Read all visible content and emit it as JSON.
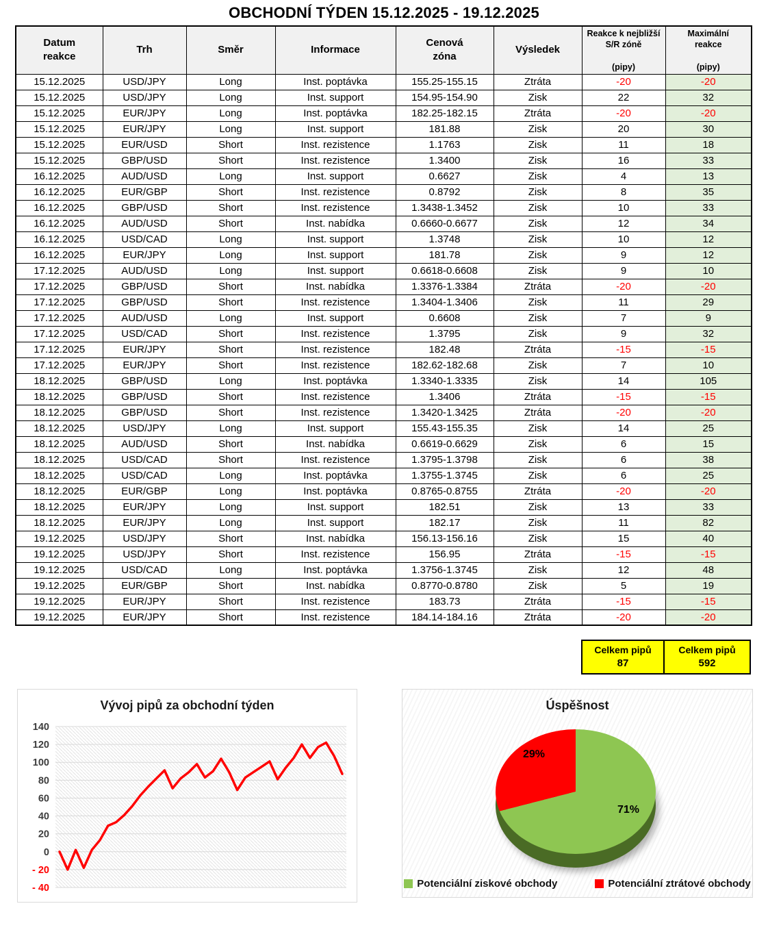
{
  "title": "OBCHODNÍ TÝDEN 15.12.2025 - 19.12.2025",
  "table": {
    "headers": [
      "Datum\nreakce",
      "Trh",
      "Směr",
      "Informace",
      "Cenová\nzóna",
      "Výsledek",
      "Reakce k nejbližší\nS/R zóně\n\n(pipy)",
      "Maximální\nreakce\n\n(pipy)"
    ],
    "rows": [
      [
        "15.12.2025",
        "USD/JPY",
        "Long",
        "Inst. poptávka",
        "155.25-155.15",
        "Ztráta",
        "-20",
        "-20"
      ],
      [
        "15.12.2025",
        "USD/JPY",
        "Long",
        "Inst. support",
        "154.95-154.90",
        "Zisk",
        "22",
        "32"
      ],
      [
        "15.12.2025",
        "EUR/JPY",
        "Long",
        "Inst. poptávka",
        "182.25-182.15",
        "Ztráta",
        "-20",
        "-20"
      ],
      [
        "15.12.2025",
        "EUR/JPY",
        "Long",
        "Inst. support",
        "181.88",
        "Zisk",
        "20",
        "30"
      ],
      [
        "15.12.2025",
        "EUR/USD",
        "Short",
        "Inst. rezistence",
        "1.1763",
        "Zisk",
        "11",
        "18"
      ],
      [
        "15.12.2025",
        "GBP/USD",
        "Short",
        "Inst. rezistence",
        "1.3400",
        "Zisk",
        "16",
        "33"
      ],
      [
        "16.12.2025",
        "AUD/USD",
        "Long",
        "Inst. support",
        "0.6627",
        "Zisk",
        "4",
        "13"
      ],
      [
        "16.12.2025",
        "EUR/GBP",
        "Short",
        "Inst. rezistence",
        "0.8792",
        "Zisk",
        "8",
        "35"
      ],
      [
        "16.12.2025",
        "GBP/USD",
        "Short",
        "Inst. rezistence",
        "1.3438-1.3452",
        "Zisk",
        "10",
        "33"
      ],
      [
        "16.12.2025",
        "AUD/USD",
        "Short",
        "Inst. nabídka",
        "0.6660-0.6677",
        "Zisk",
        "12",
        "34"
      ],
      [
        "16.12.2025",
        "USD/CAD",
        "Long",
        "Inst. support",
        "1.3748",
        "Zisk",
        "10",
        "12"
      ],
      [
        "16.12.2025",
        "EUR/JPY",
        "Long",
        "Inst. support",
        "181.78",
        "Zisk",
        "9",
        "12"
      ],
      [
        "17.12.2025",
        "AUD/USD",
        "Long",
        "Inst. support",
        "0.6618-0.6608",
        "Zisk",
        "9",
        "10"
      ],
      [
        "17.12.2025",
        "GBP/USD",
        "Short",
        "Inst. nabídka",
        "1.3376-1.3384",
        "Ztráta",
        "-20",
        "-20"
      ],
      [
        "17.12.2025",
        "GBP/USD",
        "Short",
        "Inst. rezistence",
        "1.3404-1.3406",
        "Zisk",
        "11",
        "29"
      ],
      [
        "17.12.2025",
        "AUD/USD",
        "Long",
        "Inst. support",
        "0.6608",
        "Zisk",
        "7",
        "9"
      ],
      [
        "17.12.2025",
        "USD/CAD",
        "Short",
        "Inst. rezistence",
        "1.3795",
        "Zisk",
        "9",
        "32"
      ],
      [
        "17.12.2025",
        "EUR/JPY",
        "Short",
        "Inst. rezistence",
        "182.48",
        "Ztráta",
        "-15",
        "-15"
      ],
      [
        "17.12.2025",
        "EUR/JPY",
        "Short",
        "Inst. rezistence",
        "182.62-182.68",
        "Zisk",
        "7",
        "10"
      ],
      [
        "18.12.2025",
        "GBP/USD",
        "Long",
        "Inst. poptávka",
        "1.3340-1.3335",
        "Zisk",
        "14",
        "105"
      ],
      [
        "18.12.2025",
        "GBP/USD",
        "Short",
        "Inst. rezistence",
        "1.3406",
        "Ztráta",
        "-15",
        "-15"
      ],
      [
        "18.12.2025",
        "GBP/USD",
        "Short",
        "Inst. rezistence",
        "1.3420-1.3425",
        "Ztráta",
        "-20",
        "-20"
      ],
      [
        "18.12.2025",
        "USD/JPY",
        "Long",
        "Inst. support",
        "155.43-155.35",
        "Zisk",
        "14",
        "25"
      ],
      [
        "18.12.2025",
        "AUD/USD",
        "Short",
        "Inst. nabídka",
        "0.6619-0.6629",
        "Zisk",
        "6",
        "15"
      ],
      [
        "18.12.2025",
        "USD/CAD",
        "Short",
        "Inst. rezistence",
        "1.3795-1.3798",
        "Zisk",
        "6",
        "38"
      ],
      [
        "18.12.2025",
        "USD/CAD",
        "Long",
        "Inst. poptávka",
        "1.3755-1.3745",
        "Zisk",
        "6",
        "25"
      ],
      [
        "18.12.2025",
        "EUR/GBP",
        "Long",
        "Inst. poptávka",
        "0.8765-0.8755",
        "Ztráta",
        "-20",
        "-20"
      ],
      [
        "18.12.2025",
        "EUR/JPY",
        "Long",
        "Inst. support",
        "182.51",
        "Zisk",
        "13",
        "33"
      ],
      [
        "18.12.2025",
        "EUR/JPY",
        "Long",
        "Inst. support",
        "182.17",
        "Zisk",
        "11",
        "82"
      ],
      [
        "19.12.2025",
        "USD/JPY",
        "Short",
        "Inst. nabídka",
        "156.13-156.16",
        "Zisk",
        "15",
        "40"
      ],
      [
        "19.12.2025",
        "USD/JPY",
        "Short",
        "Inst. rezistence",
        "156.95",
        "Ztráta",
        "-15",
        "-15"
      ],
      [
        "19.12.2025",
        "USD/CAD",
        "Long",
        "Inst. poptávka",
        "1.3756-1.3745",
        "Zisk",
        "12",
        "48"
      ],
      [
        "19.12.2025",
        "EUR/GBP",
        "Short",
        "Inst. nabídka",
        "0.8770-0.8780",
        "Zisk",
        "5",
        "19"
      ],
      [
        "19.12.2025",
        "EUR/JPY",
        "Short",
        "Inst. rezistence",
        "183.73",
        "Ztráta",
        "-15",
        "-15"
      ],
      [
        "19.12.2025",
        "EUR/JPY",
        "Short",
        "Inst. rezistence",
        "184.14-184.16",
        "Ztráta",
        "-20",
        "-20"
      ]
    ]
  },
  "totals": {
    "pips_label": "Celkem pipů",
    "pips_value": "87",
    "max_label": "Celkem pipů",
    "max_value": "592"
  },
  "chart_data": [
    {
      "type": "line",
      "title": "Vývoj pipů za obchodní týden",
      "xlabel": "",
      "ylabel": "",
      "ylim": [
        -40,
        140
      ],
      "ytick_step": 20,
      "grid": true,
      "line_color": "#FF0000",
      "values": [
        0,
        -20,
        2,
        -18,
        2,
        13,
        29,
        33,
        41,
        51,
        63,
        73,
        82,
        91,
        71,
        82,
        89,
        98,
        83,
        90,
        104,
        89,
        69,
        83,
        89,
        95,
        101,
        81,
        94,
        105,
        120,
        105,
        117,
        122,
        107,
        87
      ]
    },
    {
      "type": "pie",
      "title": "Úspěšnost",
      "legend_position": "bottom",
      "side_color": "#4A6B25",
      "slices": [
        {
          "label": "Potenciální ziskové obchody",
          "value": 71,
          "pct_label": "71%",
          "color": "#8EC652"
        },
        {
          "label": "Potenciální ztrátové obchody",
          "value": 29,
          "pct_label": "29%",
          "color": "#FF0000"
        }
      ]
    }
  ]
}
